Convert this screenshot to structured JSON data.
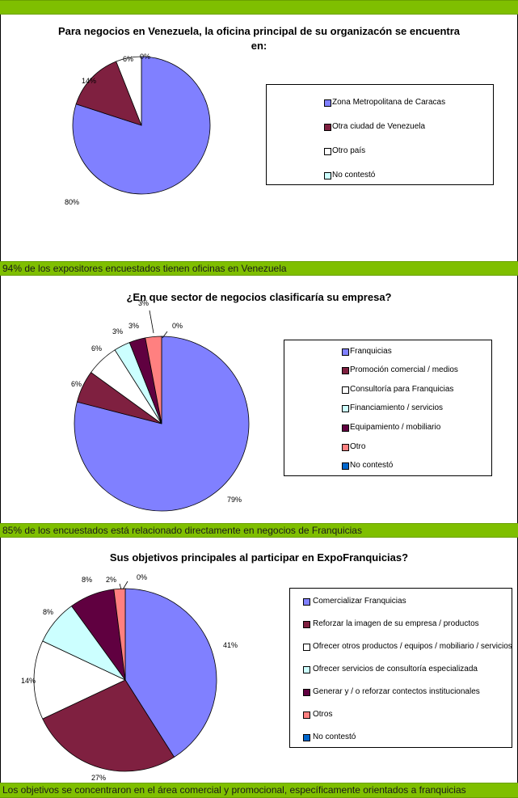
{
  "bands": [
    {
      "text": ""
    },
    {
      "text": "94% de los expositores encuestados tienen oficinas en Venezuela"
    },
    {
      "text": "85% de los encuestados está relacionado directamente en negocios de Franquicias"
    },
    {
      "text": "Los objetivos se concentraron en el área comercial y promocional, específicamente orientados a franquicias"
    }
  ],
  "chart_data": [
    {
      "type": "pie",
      "title_line1": "Para negocios en Venezuela, la oficina principal de su organizacón se encuentra",
      "title_line2": "en:",
      "categories": [
        "Zona Metropolitana  de Caracas",
        "Otra ciudad de Venezuela",
        "Otro país",
        "No contestó"
      ],
      "values": [
        80,
        14,
        6,
        0
      ],
      "labels": [
        "80%",
        "14%",
        "6%",
        "0%"
      ],
      "colors": [
        "#8080ff",
        "#7f2040",
        "#ffffff",
        "#ccffff"
      ],
      "legend_position": "right"
    },
    {
      "type": "pie",
      "title": "¿En que sector de negocios clasificaría su empresa?",
      "categories": [
        "Franquicias",
        "Promoción comercial / medios",
        "Consultoría para Franquicias",
        "Financiamiento / servicios",
        "Equipamiento / mobiliario",
        "Otro",
        "No contestó"
      ],
      "values": [
        79,
        6,
        6,
        3,
        3,
        3,
        0
      ],
      "labels": [
        "79%",
        "6%",
        "6%",
        "3%",
        "3%",
        "3%",
        "0%"
      ],
      "colors": [
        "#8080ff",
        "#7f2040",
        "#ffffff",
        "#ccffff",
        "#600040",
        "#ff8080",
        "#0066cc"
      ],
      "legend_position": "right"
    },
    {
      "type": "pie",
      "title": "Sus objetivos principales al participar en ExpoFranquicias?",
      "categories": [
        "Comercializar Franquicias",
        "Reforzar la imagen de su empresa / productos",
        "Ofrecer otros productos  / equipos / mobiliario / servicios",
        "Ofrecer servicios de consultoría especializada",
        "Generar y / o reforzar contectos institucionales",
        "Otros",
        "No contestó"
      ],
      "values": [
        41,
        27,
        14,
        8,
        8,
        2,
        0
      ],
      "labels": [
        "41%",
        "27%",
        "14%",
        "8%",
        "8%",
        "2%",
        "0%"
      ],
      "colors": [
        "#8080ff",
        "#7f2040",
        "#ffffff",
        "#ccffff",
        "#600040",
        "#ff8080",
        "#0066cc"
      ],
      "legend_position": "right"
    }
  ]
}
